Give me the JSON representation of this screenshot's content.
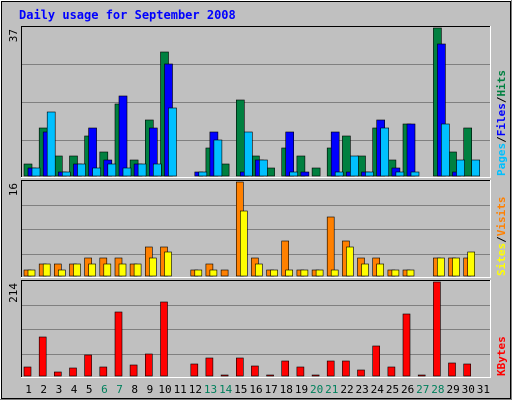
{
  "chart_data": {
    "type": "bar",
    "title": "Daily usage for September 2008",
    "categories": [
      "1",
      "2",
      "3",
      "4",
      "5",
      "6",
      "7",
      "8",
      "9",
      "10",
      "11",
      "12",
      "13",
      "14",
      "15",
      "16",
      "17",
      "18",
      "19",
      "20",
      "21",
      "22",
      "23",
      "24",
      "25",
      "26",
      "27",
      "28",
      "29",
      "30",
      "31"
    ],
    "weekend_days": [
      "6",
      "7",
      "13",
      "14",
      "20",
      "21",
      "27",
      "28"
    ],
    "panels": [
      {
        "id": "hits",
        "max_label": "37",
        "ylim": [
          0,
          37
        ],
        "legend": [
          "Pages",
          "Files",
          "Hits"
        ],
        "series": [
          {
            "name": "Hits",
            "color": "#008040",
            "values": [
              3,
              12,
              5,
              5,
              10,
              6,
              18,
              4,
              14,
              31,
              0,
              0,
              7,
              3,
              19,
              5,
              2,
              7,
              5,
              2,
              7,
              10,
              5,
              12,
              4,
              13,
              0,
              37,
              6,
              12,
              0
            ]
          },
          {
            "name": "Files",
            "color": "#0000ff",
            "values": [
              2,
              11,
              1,
              3,
              12,
              4,
              20,
              3,
              12,
              28,
              0,
              1,
              11,
              0,
              1,
              4,
              0,
              11,
              1,
              0,
              11,
              1,
              1,
              14,
              2,
              13,
              0,
              33,
              1,
              0,
              0
            ]
          },
          {
            "name": "Pages",
            "color": "#00c0ff",
            "values": [
              2,
              16,
              1,
              3,
              2,
              3,
              2,
              3,
              3,
              17,
              0,
              1,
              9,
              0,
              11,
              4,
              0,
              1,
              0,
              0,
              1,
              5,
              1,
              12,
              1,
              1,
              0,
              13,
              4,
              4,
              0
            ]
          }
        ]
      },
      {
        "id": "visits",
        "max_label": "16",
        "ylim": [
          0,
          16
        ],
        "legend": [
          "Sites",
          "Visits"
        ],
        "series": [
          {
            "name": "Visits",
            "color": "#ff8000",
            "values": [
              1,
              2,
              2,
              2,
              3,
              3,
              3,
              2,
              5,
              5,
              0,
              1,
              2,
              1,
              16,
              3,
              1,
              6,
              1,
              1,
              10,
              6,
              3,
              3,
              1,
              1,
              0,
              3,
              3,
              3,
              0
            ]
          },
          {
            "name": "Sites",
            "color": "#ffff00",
            "values": [
              1,
              2,
              1,
              2,
              2,
              2,
              2,
              2,
              3,
              4,
              0,
              1,
              1,
              0,
              11,
              2,
              1,
              1,
              1,
              1,
              1,
              5,
              2,
              2,
              1,
              1,
              0,
              3,
              3,
              4,
              0
            ]
          }
        ]
      },
      {
        "id": "kbytes",
        "max_label": "214",
        "ylim": [
          0,
          214
        ],
        "legend": [
          "KBytes"
        ],
        "series": [
          {
            "name": "KBytes",
            "color": "#ff0000",
            "values": [
              20,
              88,
              10,
              18,
              48,
              20,
              145,
              25,
              50,
              168,
              0,
              28,
              42,
              1,
              40,
              22,
              1,
              35,
              20,
              1,
              34,
              34,
              14,
              68,
              20,
              142,
              1,
              214,
              30,
              28,
              0
            ]
          }
        ]
      }
    ],
    "colors": {
      "background": "#c0c0c0",
      "title": "#0000ff",
      "axis_label": "#000000",
      "weekday_label": "#000000",
      "weekend_label": "#00805c",
      "legend_separator": "#000000"
    }
  }
}
